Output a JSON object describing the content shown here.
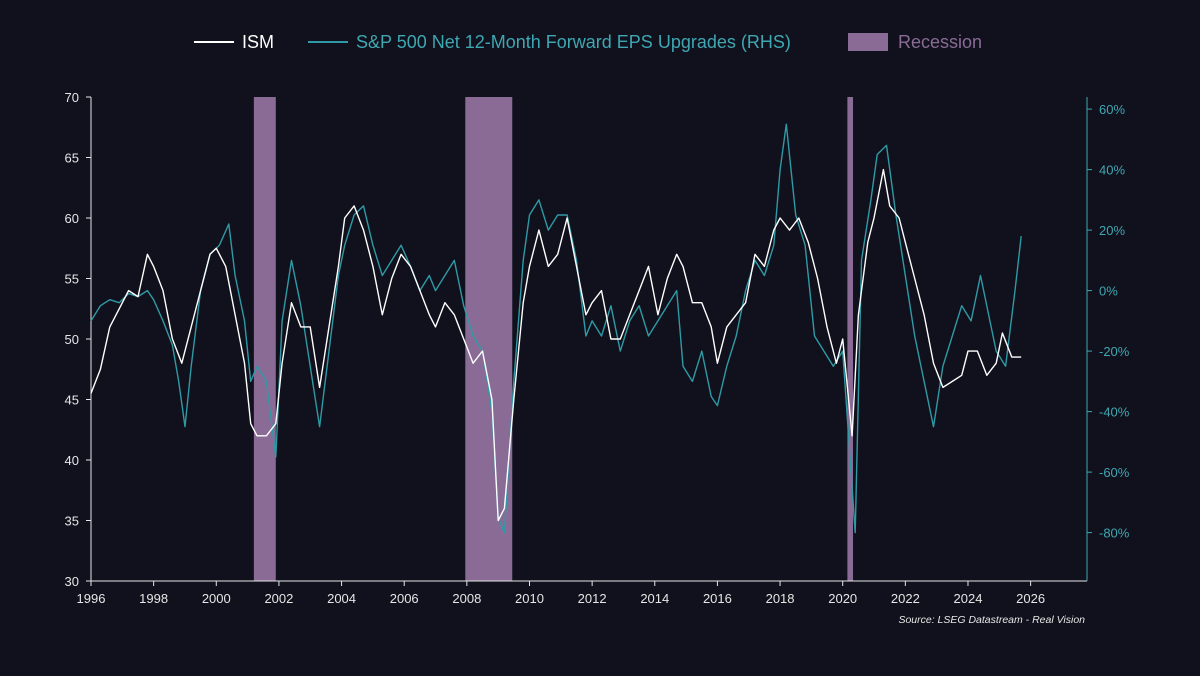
{
  "chart_data": {
    "type": "line",
    "source": "Source: LSEG Datastream - Real Vision",
    "colors": {
      "background": "#10111c",
      "ism": "#ffffff",
      "eps": "#2f9aa6",
      "recession": "#8a6b96",
      "axis_left": "#e6e6e6",
      "axis_right": "#3fa7b2",
      "source_text": "#e6e6e6"
    },
    "legend": [
      {
        "key": "ism",
        "label": "ISM",
        "kind": "line"
      },
      {
        "key": "eps",
        "label": "S&P 500 Net 12-Month Forward EPS Upgrades (RHS)",
        "kind": "line"
      },
      {
        "key": "recession",
        "label": "Recession",
        "kind": "box"
      }
    ],
    "x_axis": {
      "min": 1996,
      "max": 2027.8,
      "ticks": [
        "1996",
        "1998",
        "2000",
        "2002",
        "2004",
        "2006",
        "2008",
        "2010",
        "2012",
        "2014",
        "2016",
        "2018",
        "2020",
        "2022",
        "2024",
        "2026"
      ]
    },
    "y_left": {
      "min": 30,
      "max": 70,
      "ticks": [
        "30",
        "35",
        "40",
        "45",
        "50",
        "55",
        "60",
        "65",
        "70"
      ]
    },
    "y_right": {
      "min": -96,
      "max": 64,
      "ticks": [
        "-80%",
        "-60%",
        "-40%",
        "-20%",
        "0%",
        "20%",
        "40%",
        "60%"
      ],
      "tick_values": [
        -80,
        -60,
        -40,
        -20,
        0,
        20,
        40,
        60
      ]
    },
    "recessions": [
      [
        2001.2,
        2001.9
      ],
      [
        2007.95,
        2009.45
      ],
      [
        2020.15,
        2020.33
      ]
    ],
    "series": [
      {
        "name": "ISM",
        "key": "ism",
        "axis": "left",
        "points": [
          [
            1996.0,
            45.5
          ],
          [
            1996.3,
            47.5
          ],
          [
            1996.6,
            51
          ],
          [
            1996.9,
            52.5
          ],
          [
            1997.2,
            54
          ],
          [
            1997.5,
            53.5
          ],
          [
            1997.8,
            57
          ],
          [
            1998.0,
            56
          ],
          [
            1998.3,
            54
          ],
          [
            1998.6,
            50
          ],
          [
            1998.9,
            48
          ],
          [
            1999.2,
            51
          ],
          [
            1999.5,
            54
          ],
          [
            1999.8,
            57
          ],
          [
            2000.0,
            57.5
          ],
          [
            2000.3,
            56
          ],
          [
            2000.6,
            52
          ],
          [
            2000.9,
            48
          ],
          [
            2001.1,
            43
          ],
          [
            2001.3,
            42
          ],
          [
            2001.6,
            42
          ],
          [
            2001.9,
            43
          ],
          [
            2002.1,
            48
          ],
          [
            2002.4,
            53
          ],
          [
            2002.7,
            51
          ],
          [
            2003.0,
            51
          ],
          [
            2003.3,
            46
          ],
          [
            2003.6,
            51
          ],
          [
            2003.9,
            56
          ],
          [
            2004.1,
            60
          ],
          [
            2004.4,
            61
          ],
          [
            2004.7,
            59
          ],
          [
            2005.0,
            56
          ],
          [
            2005.3,
            52
          ],
          [
            2005.6,
            55
          ],
          [
            2005.9,
            57
          ],
          [
            2006.2,
            56
          ],
          [
            2006.5,
            54
          ],
          [
            2006.8,
            52
          ],
          [
            2007.0,
            51
          ],
          [
            2007.3,
            53
          ],
          [
            2007.6,
            52
          ],
          [
            2007.9,
            50
          ],
          [
            2008.2,
            48
          ],
          [
            2008.5,
            49
          ],
          [
            2008.8,
            45
          ],
          [
            2009.0,
            35
          ],
          [
            2009.2,
            36
          ],
          [
            2009.5,
            45
          ],
          [
            2009.8,
            53
          ],
          [
            2010.0,
            56
          ],
          [
            2010.3,
            59
          ],
          [
            2010.6,
            56
          ],
          [
            2010.9,
            57
          ],
          [
            2011.2,
            60
          ],
          [
            2011.5,
            56
          ],
          [
            2011.8,
            52
          ],
          [
            2012.0,
            53
          ],
          [
            2012.3,
            54
          ],
          [
            2012.6,
            50
          ],
          [
            2012.9,
            50
          ],
          [
            2013.2,
            52
          ],
          [
            2013.5,
            54
          ],
          [
            2013.8,
            56
          ],
          [
            2014.1,
            52
          ],
          [
            2014.4,
            55
          ],
          [
            2014.7,
            57
          ],
          [
            2014.9,
            56
          ],
          [
            2015.2,
            53
          ],
          [
            2015.5,
            53
          ],
          [
            2015.8,
            51
          ],
          [
            2016.0,
            48
          ],
          [
            2016.3,
            51
          ],
          [
            2016.6,
            52
          ],
          [
            2016.9,
            53
          ],
          [
            2017.2,
            57
          ],
          [
            2017.5,
            56
          ],
          [
            2017.8,
            59
          ],
          [
            2018.0,
            60
          ],
          [
            2018.3,
            59
          ],
          [
            2018.6,
            60
          ],
          [
            2018.9,
            58
          ],
          [
            2019.2,
            55
          ],
          [
            2019.5,
            51
          ],
          [
            2019.8,
            48
          ],
          [
            2020.0,
            50
          ],
          [
            2020.3,
            42
          ],
          [
            2020.5,
            52
          ],
          [
            2020.8,
            58
          ],
          [
            2021.0,
            60
          ],
          [
            2021.3,
            64
          ],
          [
            2021.5,
            61
          ],
          [
            2021.8,
            60
          ],
          [
            2022.0,
            58
          ],
          [
            2022.3,
            55
          ],
          [
            2022.6,
            52
          ],
          [
            2022.9,
            48
          ],
          [
            2023.2,
            46
          ],
          [
            2023.5,
            46.5
          ],
          [
            2023.8,
            47
          ],
          [
            2024.0,
            49
          ],
          [
            2024.3,
            49
          ],
          [
            2024.6,
            47
          ],
          [
            2024.9,
            48
          ],
          [
            2025.1,
            50.5
          ],
          [
            2025.4,
            48.5
          ],
          [
            2025.7,
            48.5
          ]
        ]
      },
      {
        "name": "S&P 500 Net 12-Month Forward EPS Upgrades (RHS)",
        "key": "eps",
        "axis": "right",
        "points": [
          [
            1996.0,
            -10
          ],
          [
            1996.3,
            -5
          ],
          [
            1996.6,
            -3
          ],
          [
            1996.9,
            -4
          ],
          [
            1997.2,
            -1
          ],
          [
            1997.5,
            -2
          ],
          [
            1997.8,
            0
          ],
          [
            1998.0,
            -3
          ],
          [
            1998.3,
            -10
          ],
          [
            1998.6,
            -18
          ],
          [
            1998.8,
            -30
          ],
          [
            1999.0,
            -45
          ],
          [
            1999.2,
            -25
          ],
          [
            1999.5,
            0
          ],
          [
            1999.8,
            12
          ],
          [
            2000.1,
            15
          ],
          [
            2000.4,
            22
          ],
          [
            2000.6,
            5
          ],
          [
            2000.9,
            -10
          ],
          [
            2001.1,
            -30
          ],
          [
            2001.3,
            -25
          ],
          [
            2001.6,
            -30
          ],
          [
            2001.9,
            -55
          ],
          [
            2002.1,
            -10
          ],
          [
            2002.4,
            10
          ],
          [
            2002.7,
            -5
          ],
          [
            2003.0,
            -25
          ],
          [
            2003.3,
            -45
          ],
          [
            2003.6,
            -20
          ],
          [
            2003.9,
            5
          ],
          [
            2004.1,
            15
          ],
          [
            2004.4,
            25
          ],
          [
            2004.7,
            28
          ],
          [
            2005.0,
            15
          ],
          [
            2005.3,
            5
          ],
          [
            2005.6,
            10
          ],
          [
            2005.9,
            15
          ],
          [
            2006.2,
            8
          ],
          [
            2006.5,
            0
          ],
          [
            2006.8,
            5
          ],
          [
            2007.0,
            0
          ],
          [
            2007.3,
            5
          ],
          [
            2007.6,
            10
          ],
          [
            2007.9,
            -5
          ],
          [
            2008.2,
            -15
          ],
          [
            2008.5,
            -20
          ],
          [
            2008.8,
            -40
          ],
          [
            2009.0,
            -75
          ],
          [
            2009.2,
            -80
          ],
          [
            2009.5,
            -30
          ],
          [
            2009.8,
            10
          ],
          [
            2010.0,
            25
          ],
          [
            2010.3,
            30
          ],
          [
            2010.6,
            20
          ],
          [
            2010.9,
            25
          ],
          [
            2011.2,
            25
          ],
          [
            2011.5,
            10
          ],
          [
            2011.8,
            -15
          ],
          [
            2012.0,
            -10
          ],
          [
            2012.3,
            -15
          ],
          [
            2012.6,
            -5
          ],
          [
            2012.9,
            -20
          ],
          [
            2013.2,
            -10
          ],
          [
            2013.5,
            -5
          ],
          [
            2013.8,
            -15
          ],
          [
            2014.1,
            -10
          ],
          [
            2014.4,
            -5
          ],
          [
            2014.7,
            0
          ],
          [
            2014.9,
            -25
          ],
          [
            2015.2,
            -30
          ],
          [
            2015.5,
            -20
          ],
          [
            2015.8,
            -35
          ],
          [
            2016.0,
            -38
          ],
          [
            2016.3,
            -25
          ],
          [
            2016.6,
            -15
          ],
          [
            2016.9,
            0
          ],
          [
            2017.2,
            10
          ],
          [
            2017.5,
            5
          ],
          [
            2017.8,
            15
          ],
          [
            2018.0,
            40
          ],
          [
            2018.2,
            55
          ],
          [
            2018.5,
            25
          ],
          [
            2018.8,
            15
          ],
          [
            2019.1,
            -15
          ],
          [
            2019.4,
            -20
          ],
          [
            2019.7,
            -25
          ],
          [
            2020.0,
            -20
          ],
          [
            2020.2,
            -50
          ],
          [
            2020.4,
            -80
          ],
          [
            2020.6,
            10
          ],
          [
            2020.9,
            30
          ],
          [
            2021.1,
            45
          ],
          [
            2021.4,
            48
          ],
          [
            2021.7,
            25
          ],
          [
            2022.0,
            5
          ],
          [
            2022.3,
            -15
          ],
          [
            2022.6,
            -30
          ],
          [
            2022.9,
            -45
          ],
          [
            2023.2,
            -25
          ],
          [
            2023.5,
            -15
          ],
          [
            2023.8,
            -5
          ],
          [
            2024.1,
            -10
          ],
          [
            2024.4,
            5
          ],
          [
            2024.7,
            -10
          ],
          [
            2024.9,
            -20
          ],
          [
            2025.2,
            -25
          ],
          [
            2025.5,
            0
          ],
          [
            2025.7,
            18
          ]
        ]
      }
    ]
  }
}
